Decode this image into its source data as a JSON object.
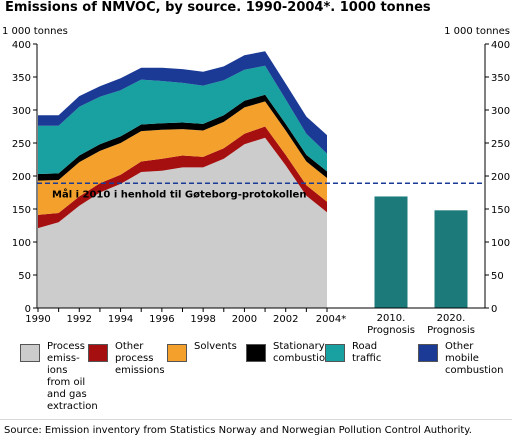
{
  "title": "Emissions of NMVOC, by source. 1990-2004*. 1000 tonnes",
  "source": "Source: Emission inventory from Statistics Norway and Norwegian Pollution Control Authority.",
  "chart_data": {
    "type": "area",
    "unit_left": "1 000 tonnes",
    "unit_right": "1 000 tonnes",
    "ylim": [
      0,
      400
    ],
    "yticks": [
      0,
      50,
      100,
      150,
      200,
      250,
      300,
      350,
      400
    ],
    "x": [
      1990,
      1991,
      1992,
      1993,
      1994,
      1995,
      1996,
      1997,
      1998,
      1999,
      2000,
      2001,
      2002,
      2003,
      2004
    ],
    "xtick_labels": [
      "1990",
      "1992",
      "1994",
      "1996",
      "1998",
      "2000",
      "2002",
      "2004*"
    ],
    "series": [
      {
        "name": "Process emissions from oil and gas extraction",
        "color": "#cccccc",
        "values": [
          121,
          130,
          155,
          175,
          188,
          206,
          208,
          213,
          213,
          226,
          248,
          258,
          216,
          170,
          145
        ]
      },
      {
        "name": "Other process emissions",
        "color": "#a50f0f",
        "values": [
          20,
          14,
          14,
          14,
          14,
          16,
          18,
          18,
          16,
          16,
          16,
          17,
          16,
          16,
          16
        ]
      },
      {
        "name": "Solvents",
        "color": "#f4a02c",
        "values": [
          52,
          50,
          52,
          49,
          48,
          46,
          44,
          40,
          40,
          40,
          40,
          38,
          37,
          36,
          36
        ]
      },
      {
        "name": "Stationary combustion",
        "color": "#000000",
        "values": [
          10,
          10,
          10,
          10,
          10,
          10,
          10,
          10,
          10,
          10,
          10,
          10,
          10,
          10,
          10
        ]
      },
      {
        "name": "Road traffic",
        "color": "#19a0a0",
        "values": [
          73,
          72,
          74,
          72,
          70,
          68,
          64,
          60,
          58,
          53,
          47,
          44,
          37,
          32,
          27
        ]
      },
      {
        "name": "Other mobile combustion",
        "color": "#1a3a96",
        "values": [
          16,
          16,
          16,
          16,
          18,
          18,
          20,
          21,
          21,
          21,
          22,
          22,
          24,
          26,
          28
        ]
      }
    ],
    "prognosis": [
      {
        "label": "2010.\nPrognosis",
        "value": 169,
        "color": "#1d7a7a"
      },
      {
        "label": "2020.\nPrognosis",
        "value": 148,
        "color": "#1d7a7a"
      }
    ],
    "target_line": {
      "value": 189,
      "label": "Mål i 2010 i henhold til Gøteborg-protokollen",
      "color": "#1a3a96"
    },
    "legend_placement": "bottom",
    "grid": false
  }
}
